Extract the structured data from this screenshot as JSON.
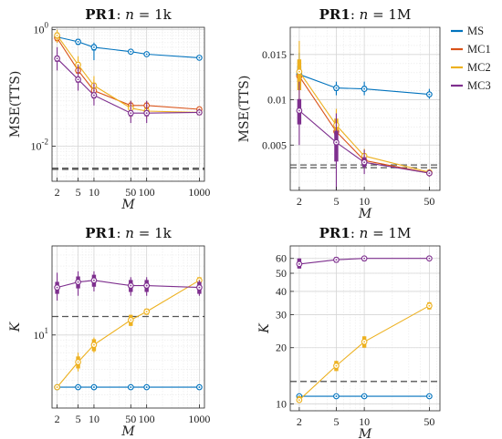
{
  "chart_data": [
    {
      "type": "line",
      "title": "PR1: n = 1k",
      "title_parts": [
        "PR1",
        ": ",
        "n",
        " = 1k"
      ],
      "xlabel": "M",
      "ylabel": "MSE(TTS)",
      "xscale": "log",
      "yscale": "log",
      "xlim": [
        1.6,
        1250
      ],
      "ylim": [
        0.0025,
        1.1
      ],
      "xticks": [
        2,
        5,
        10,
        50,
        100,
        1000
      ],
      "xtick_labels": [
        "2",
        "5",
        "10",
        "50",
        "100",
        "1000"
      ],
      "yticks": [
        1,
        0.01
      ],
      "ytick_labels": [
        "10^0",
        "10^-2"
      ],
      "grid": true,
      "reference_lines": [
        0.0042,
        0.004
      ],
      "x": [
        2,
        5,
        10,
        50,
        100,
        1000
      ],
      "series": [
        {
          "name": "MS",
          "color": "#0072BD",
          "values": [
            0.75,
            0.62,
            0.5,
            0.42,
            0.38,
            0.33
          ],
          "err": [
            [
              0.7,
              0.8
            ],
            [
              0.55,
              0.7
            ],
            [
              0.3,
              0.6
            ],
            [
              0.4,
              0.45
            ],
            [
              0.36,
              0.4
            ],
            [
              0.31,
              0.35
            ]
          ]
        },
        {
          "name": "MC1",
          "color": "#D95319",
          "values": [
            0.72,
            0.2,
            0.09,
            0.05,
            0.05,
            0.043
          ],
          "err": [
            [
              0.6,
              0.85
            ],
            [
              0.15,
              0.3
            ],
            [
              0.06,
              0.14
            ],
            [
              0.04,
              0.06
            ],
            [
              0.04,
              0.06
            ],
            [
              0.04,
              0.046
            ]
          ]
        },
        {
          "name": "MC2",
          "color": "#EDB120",
          "values": [
            0.8,
            0.25,
            0.11,
            0.045,
            0.04,
            0.038
          ],
          "err": [
            [
              0.6,
              1.0
            ],
            [
              0.18,
              0.35
            ],
            [
              0.07,
              0.16
            ],
            [
              0.03,
              0.06
            ],
            [
              0.03,
              0.05
            ],
            [
              0.035,
              0.042
            ]
          ]
        },
        {
          "name": "MC3",
          "color": "#7E2F8E",
          "values": [
            0.32,
            0.14,
            0.075,
            0.037,
            0.037,
            0.038
          ],
          "err": [
            [
              0.2,
              0.5
            ],
            [
              0.09,
              0.25
            ],
            [
              0.05,
              0.12
            ],
            [
              0.025,
              0.06
            ],
            [
              0.025,
              0.06
            ],
            [
              0.034,
              0.042
            ]
          ]
        }
      ]
    },
    {
      "type": "line",
      "title": "PR1: n = 1M",
      "title_parts": [
        "PR1",
        ": ",
        "n",
        " = 1M"
      ],
      "xlabel": "M",
      "ylabel": "MSE(TTS)",
      "xscale": "log",
      "yscale": "linear",
      "xlim": [
        1.6,
        65
      ],
      "ylim": [
        0.0,
        0.018
      ],
      "xticks": [
        2,
        5,
        10,
        50
      ],
      "xtick_labels": [
        "2",
        "5",
        "10",
        "50"
      ],
      "yticks": [
        0.005,
        0.01,
        0.015
      ],
      "ytick_labels": [
        "0.005",
        "0.01",
        "0.015"
      ],
      "grid": true,
      "reference_lines": [
        0.0028,
        0.0025
      ],
      "x": [
        2,
        5,
        10,
        50
      ],
      "series": [
        {
          "name": "MS",
          "color": "#0072BD",
          "values": [
            0.0128,
            0.0113,
            0.0112,
            0.0106
          ],
          "err": [
            [
              0.012,
              0.0152
            ],
            [
              0.0105,
              0.012
            ],
            [
              0.0105,
              0.012
            ],
            [
              0.0101,
              0.0112
            ]
          ]
        },
        {
          "name": "MC1",
          "color": "#D95319",
          "values": [
            0.0126,
            0.0065,
            0.0033,
            0.0019
          ],
          "err": [
            [
              0.011,
              0.0145
            ],
            [
              0.0055,
              0.0075
            ],
            [
              0.0028,
              0.0038
            ],
            [
              0.0016,
              0.0022
            ]
          ]
        },
        {
          "name": "MC2",
          "color": "#EDB120",
          "values": [
            0.0131,
            0.0072,
            0.0038,
            0.002
          ],
          "err": [
            [
              0.008,
              0.0165
            ],
            [
              0.005,
              0.009
            ],
            [
              0.003,
              0.0046
            ],
            [
              0.0017,
              0.0023
            ]
          ]
        },
        {
          "name": "MC3",
          "color": "#7E2F8E",
          "values": [
            0.0088,
            0.0053,
            0.0031,
            0.0019
          ],
          "err": [
            [
              0.005,
              0.012
            ],
            [
              0.0,
              0.0085
            ],
            [
              0.0018,
              0.0045
            ],
            [
              0.0015,
              0.0023
            ]
          ]
        }
      ]
    },
    {
      "type": "line",
      "title": "PR1: n = 1k",
      "title_parts": [
        "PR1",
        ": ",
        "n",
        " = 1k"
      ],
      "xlabel": "M",
      "ylabel": "K",
      "xscale": "log",
      "yscale": "log",
      "xlim": [
        1.6,
        1250
      ],
      "ylim": [
        2.3,
        60
      ],
      "xticks": [
        2,
        5,
        10,
        50,
        100,
        1000
      ],
      "xtick_labels": [
        "2",
        "5",
        "10",
        "50",
        "100",
        "1000"
      ],
      "yticks": [
        10
      ],
      "ytick_labels": [
        "10^1"
      ],
      "grid": true,
      "reference_lines": [
        14.5
      ],
      "x": [
        2,
        5,
        10,
        50,
        100,
        1000
      ],
      "series": [
        {
          "name": "MS",
          "color": "#0072BD",
          "values": [
            3.5,
            3.5,
            3.5,
            3.5,
            3.5,
            3.5
          ],
          "err": [
            [
              3.5,
              3.5
            ],
            [
              3.5,
              3.5
            ],
            [
              3.5,
              3.5
            ],
            [
              3.5,
              3.5
            ],
            [
              3.5,
              3.5
            ],
            [
              3.5,
              3.5
            ]
          ]
        },
        {
          "name": "MC2",
          "color": "#EDB120",
          "values": [
            3.5,
            5.8,
            8.2,
            13.5,
            16.0,
            30.0
          ],
          "err": [
            [
              3.5,
              3.5
            ],
            [
              4.8,
              7.0
            ],
            [
              7.0,
              9.5
            ],
            [
              12.0,
              15.0
            ],
            [
              15.0,
              17.0
            ],
            [
              28.0,
              32.0
            ]
          ]
        },
        {
          "name": "MC3",
          "color": "#7E2F8E",
          "values": [
            26.0,
            29.0,
            30.0,
            27.0,
            27.0,
            26.0
          ],
          "err": [
            [
              20.0,
              35.0
            ],
            [
              22.0,
              36.0
            ],
            [
              24.0,
              36.0
            ],
            [
              22.0,
              32.0
            ],
            [
              22.0,
              32.0
            ],
            [
              22.0,
              30.0
            ]
          ]
        }
      ]
    },
    {
      "type": "line",
      "title": "PR1: n = 1M",
      "title_parts": [
        "PR1",
        ": ",
        "n",
        " = 1M"
      ],
      "xlabel": "M",
      "ylabel": "K",
      "xscale": "log",
      "yscale": "log",
      "xlim": [
        1.6,
        65
      ],
      "ylim": [
        9.2,
        70
      ],
      "xticks": [
        2,
        5,
        10,
        50
      ],
      "xtick_labels": [
        "2",
        "5",
        "10",
        "50"
      ],
      "yticks": [
        10,
        20,
        30,
        40,
        50,
        60
      ],
      "ytick_labels": [
        "10",
        "20",
        "30",
        "40",
        "50",
        "60"
      ],
      "grid": true,
      "reference_lines": [
        13.2
      ],
      "x": [
        2,
        5,
        10,
        50
      ],
      "series": [
        {
          "name": "MS",
          "color": "#0072BD",
          "values": [
            11.0,
            11.0,
            11.0,
            11.0
          ],
          "err": [
            [
              11.0,
              11.0
            ],
            [
              11.0,
              11.0
            ],
            [
              11.0,
              11.0
            ],
            [
              11.0,
              11.0
            ]
          ]
        },
        {
          "name": "MC2",
          "color": "#EDB120",
          "values": [
            10.5,
            16.0,
            21.5,
            33.5
          ],
          "err": [
            [
              10.2,
              11.0
            ],
            [
              15.0,
              17.0
            ],
            [
              20.0,
              23.0
            ],
            [
              32.0,
              35.0
            ]
          ]
        },
        {
          "name": "MC3",
          "color": "#7E2F8E",
          "values": [
            56.0,
            59.0,
            60.0,
            60.0
          ],
          "err": [
            [
              53.0,
              60.0
            ],
            [
              57.0,
              61.0
            ],
            [
              58.0,
              61.0
            ],
            [
              59.0,
              61.0
            ]
          ]
        }
      ]
    }
  ],
  "legend": {
    "placement": "top-right",
    "entries": [
      {
        "name": "MS",
        "color": "#0072BD"
      },
      {
        "name": "MC1",
        "color": "#D95319"
      },
      {
        "name": "MC2",
        "color": "#EDB120"
      },
      {
        "name": "MC3",
        "color": "#7E2F8E"
      }
    ]
  }
}
